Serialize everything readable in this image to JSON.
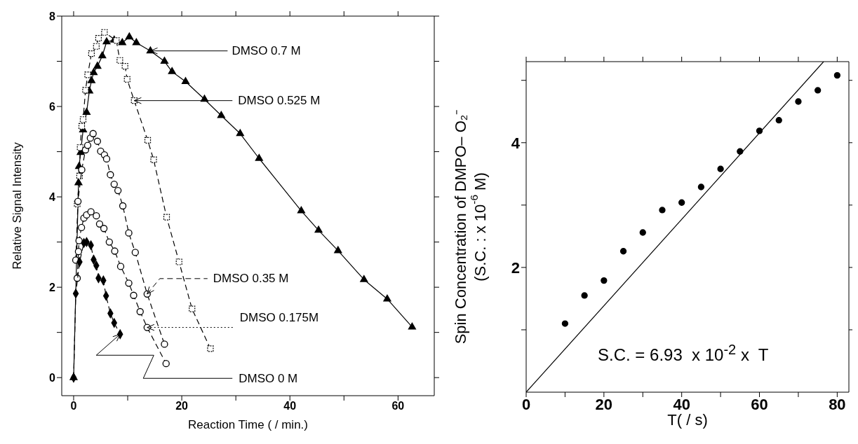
{
  "chart_data": [
    {
      "type": "line",
      "xlabel": "Reaction Time ( / min.)",
      "ylabel": "Relative Signal Intensity",
      "xlim": [
        -2.2,
        66.7
      ],
      "xticks": [
        0,
        {
          "value": 10,
          "label": null
        },
        20,
        {
          "value": 30,
          "label": null
        },
        40,
        {
          "value": 50,
          "label": null
        },
        60
      ],
      "ylim": [
        -0.4,
        8
      ],
      "yticks": [
        0,
        {
          "value": 1,
          "label": null
        },
        2,
        {
          "value": 3,
          "label": null
        },
        4,
        {
          "value": 5,
          "label": null
        },
        6,
        {
          "value": 7,
          "label": null
        },
        8
      ],
      "grid": false,
      "legend": false,
      "series": [
        {
          "name": "DMSO 0.7 M",
          "color": "#000000",
          "marker": "triangle",
          "line_style": "solid",
          "x": [
            0,
            0.9,
            1.0,
            1.3,
            1.75,
            2.4,
            2.9,
            3.3,
            3.7,
            4.4,
            5.3,
            6.1,
            7.5,
            9.0,
            10.3,
            11.6,
            14.2,
            16.8,
            18.2,
            20.7,
            24.2,
            27.3,
            30.8,
            34.3,
            42.1,
            45.3,
            48.9,
            53.7,
            58.0,
            62.6
          ],
          "values": [
            0,
            4.31,
            4.67,
            4.98,
            5.48,
            5.87,
            6.34,
            6.57,
            6.75,
            6.89,
            7.12,
            7.43,
            7.47,
            7.41,
            7.54,
            7.41,
            7.23,
            7.0,
            6.77,
            6.55,
            6.16,
            5.8,
            5.4,
            4.85,
            3.69,
            3.26,
            2.81,
            2.17,
            1.74,
            1.12
          ]
        },
        {
          "name": "DMSO 0.525 M",
          "color": "#000000",
          "marker": "square",
          "line_style": "dashed",
          "x": [
            0.66,
            1.1,
            1.2,
            1.5,
            1.75,
            2.2,
            2.6,
            3.3,
            4.2,
            4.6,
            5.7,
            7.9,
            8.55,
            9.5,
            9.9,
            11.2,
            13.7,
            14.8,
            17.2,
            19.5,
            21.9,
            25.3
          ],
          "values": [
            3.84,
            4.46,
            5.09,
            5.56,
            5.71,
            6.36,
            6.7,
            7.17,
            7.33,
            7.51,
            7.64,
            7.46,
            7.02,
            6.89,
            6.6,
            6.13,
            5.25,
            4.82,
            3.55,
            2.56,
            1.52,
            0.64
          ]
        },
        {
          "name": "DMSO 0.35 M",
          "color": "#000000",
          "marker": "circle",
          "line_style": "dashed",
          "x": [
            0.4,
            0.8,
            1.5,
            2.2,
            2.6,
            3.1,
            3.6,
            4.4,
            5.0,
            5.7,
            6.1,
            6.8,
            7.5,
            8.2,
            9.1,
            10.2,
            11.4,
            13.6,
            16.8
          ],
          "values": [
            2.6,
            3.9,
            4.6,
            5.04,
            5.14,
            5.3,
            5.4,
            5.23,
            5.01,
            4.93,
            4.84,
            4.49,
            4.28,
            4.14,
            3.8,
            3.2,
            2.77,
            1.85,
            0.74
          ]
        },
        {
          "name": "DMSO 0.175M",
          "color": "#000000",
          "marker": "circle",
          "line_style": "dashed",
          "x": [
            0.66,
            0.9,
            1.0,
            1.45,
            1.9,
            2.4,
            3.2,
            4.2,
            4.8,
            5.6,
            6.6,
            7.6,
            8.7,
            10.2,
            11.1,
            12.3,
            13.6,
            17.1
          ],
          "values": [
            2.2,
            2.79,
            3.03,
            3.32,
            3.53,
            3.6,
            3.67,
            3.58,
            3.4,
            3.3,
            3.0,
            2.8,
            2.46,
            2.09,
            1.82,
            1.46,
            1.11,
            0.31
          ]
        },
        {
          "name": "DMSO 0 M",
          "color": "#000000",
          "marker": "diamond",
          "line_style": "dashed",
          "x": [
            0,
            0.4,
            1.1,
            1.9,
            2.4,
            3.2,
            3.7,
            4.2,
            4.6,
            5.5,
            6.0,
            6.8,
            7.5,
            8.6
          ],
          "values": [
            0,
            1.86,
            2.56,
            2.98,
            3.0,
            2.93,
            2.61,
            2.48,
            2.2,
            2.15,
            1.81,
            1.42,
            1.21,
            0.96
          ]
        }
      ]
    },
    {
      "type": "scatter",
      "xlabel": "T( / s)",
      "ylabel": "Spin Concentration of DMPO– O₂⁻\n(S.C.  : x 10$^{-6}$ M)",
      "xlim": [
        0,
        83
      ],
      "xticks": [
        0,
        {
          "value": 10,
          "label": null
        },
        20,
        {
          "value": 30,
          "label": null
        },
        40,
        {
          "value": 50,
          "label": null
        },
        60,
        {
          "value": 70,
          "label": null
        },
        80
      ],
      "ylim": [
        0,
        5.3
      ],
      "yticks": [
        {
          "value": 1,
          "label": null
        },
        2,
        {
          "value": 3,
          "label": null
        },
        4,
        {
          "value": 5,
          "label": null
        }
      ],
      "grid": false,
      "legend": false,
      "annotations": [
        "S.C. = 6.93  x 10$^{-2}$ x  T"
      ],
      "series": [
        {
          "color": "#000000",
          "marker": "circle",
          "x": [
            10,
            15,
            20,
            25,
            30,
            35,
            40,
            45,
            50,
            55,
            60,
            65,
            70,
            75,
            80
          ],
          "values": [
            1.1,
            1.55,
            1.79,
            2.26,
            2.56,
            2.92,
            3.04,
            3.29,
            3.58,
            3.86,
            4.19,
            4.36,
            4.66,
            4.84,
            5.08
          ]
        },
        {
          "type": "line",
          "color": "#000000",
          "marker": "none",
          "line_style": "solid",
          "x": [
            0,
            76.5
          ],
          "values": [
            0,
            5.3
          ]
        }
      ]
    }
  ]
}
